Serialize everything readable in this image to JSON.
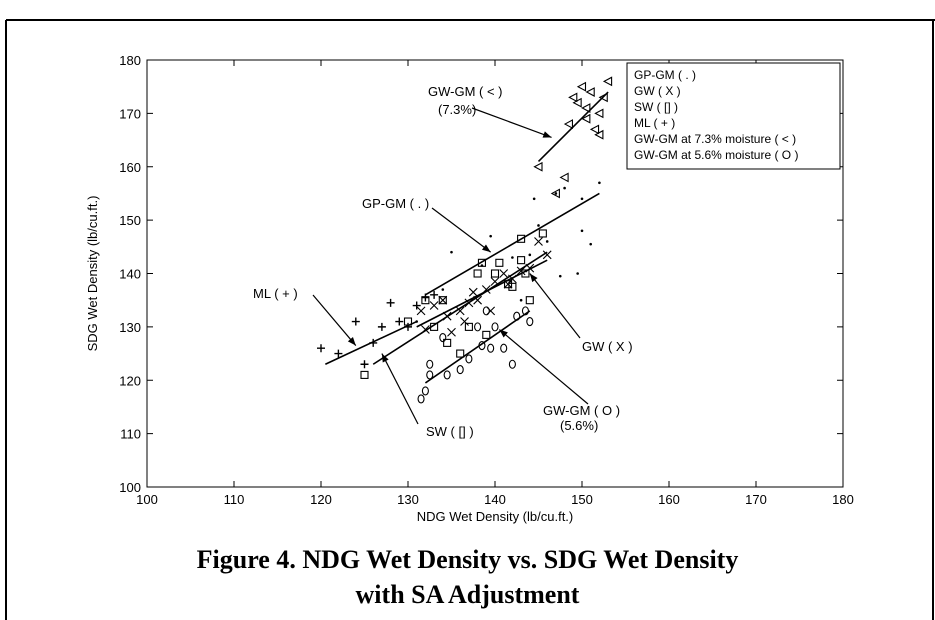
{
  "figure": {
    "caption_line1": "Figure 4. NDG Wet Density vs. SDG Wet Density",
    "caption_line2": "with SA Adjustment"
  },
  "chart_data": {
    "type": "scatter",
    "xlabel": "NDG Wet Density (lb/cu.ft.)",
    "ylabel": "SDG Wet Density (lb/cu.ft.)",
    "xlim": [
      100,
      180
    ],
    "ylim": [
      100,
      180
    ],
    "xticks": [
      100,
      110,
      120,
      130,
      140,
      150,
      160,
      170,
      180
    ],
    "yticks": [
      100,
      110,
      120,
      130,
      140,
      150,
      160,
      170,
      180
    ],
    "grid": false,
    "legend_position": "top-right",
    "legend": [
      "GP-GM  ( . )",
      "GW ( X )",
      "SW ( [] )",
      "ML  ( + )",
      "GW-GM at 7.3% moisture ( < )",
      "GW-GM at 5.6% moisture ( O )"
    ],
    "series": [
      {
        "name": "GP-GM  ( . )",
        "marker": "dot",
        "points": [
          [
            138.5,
            141.5
          ],
          [
            139.5,
            147
          ],
          [
            142,
            143
          ],
          [
            144,
            143.5
          ],
          [
            145,
            149
          ],
          [
            147,
            155
          ],
          [
            148,
            156
          ],
          [
            150,
            154
          ],
          [
            152,
            157
          ],
          [
            151,
            145.5
          ],
          [
            149.5,
            140
          ],
          [
            147.5,
            139.5
          ],
          [
            135,
            144
          ],
          [
            134,
            137
          ],
          [
            131,
            131
          ],
          [
            144.5,
            154
          ],
          [
            143,
            135
          ],
          [
            146,
            146
          ],
          [
            150,
            148
          ]
        ],
        "fit": [
          [
            132,
            136
          ],
          [
            152,
            155
          ]
        ]
      },
      {
        "name": "GW ( X )",
        "marker": "x",
        "points": [
          [
            131.5,
            133
          ],
          [
            132,
            129.5
          ],
          [
            133,
            134
          ],
          [
            134,
            135
          ],
          [
            135,
            129
          ],
          [
            136,
            133
          ],
          [
            137,
            134.5
          ],
          [
            137.5,
            136.5
          ],
          [
            138,
            135
          ],
          [
            139,
            137
          ],
          [
            140,
            138.5
          ],
          [
            141,
            140
          ],
          [
            141.5,
            138
          ],
          [
            142,
            139
          ],
          [
            143,
            140.5
          ],
          [
            144,
            141
          ],
          [
            145,
            146
          ],
          [
            134.5,
            132
          ],
          [
            136.5,
            131
          ],
          [
            139.5,
            133
          ],
          [
            146,
            143.5
          ]
        ],
        "fit": [
          [
            131,
            130
          ],
          [
            146,
            142.5
          ]
        ]
      },
      {
        "name": "SW ( [] )",
        "marker": "square",
        "points": [
          [
            125,
            121
          ],
          [
            130,
            131
          ],
          [
            132,
            135
          ],
          [
            134,
            135
          ],
          [
            133,
            130
          ],
          [
            136,
            125
          ],
          [
            137,
            130
          ],
          [
            138,
            140
          ],
          [
            138.5,
            142
          ],
          [
            140,
            140
          ],
          [
            140.5,
            142
          ],
          [
            141.5,
            138
          ],
          [
            142,
            137.5
          ],
          [
            143,
            142.5
          ],
          [
            143.5,
            140
          ],
          [
            144,
            135
          ],
          [
            145.5,
            147.5
          ],
          [
            143,
            146.5
          ],
          [
            134.5,
            127
          ],
          [
            139,
            128.5
          ]
        ],
        "fit": [
          [
            126,
            123
          ],
          [
            146,
            144
          ]
        ]
      },
      {
        "name": "ML  ( + )",
        "marker": "plus",
        "points": [
          [
            120,
            126
          ],
          [
            122,
            125
          ],
          [
            124,
            131
          ],
          [
            125,
            123
          ],
          [
            126,
            127
          ],
          [
            127,
            130
          ],
          [
            128,
            134.5
          ],
          [
            129,
            131
          ],
          [
            130,
            130
          ],
          [
            132,
            135.5
          ],
          [
            133,
            136
          ],
          [
            131,
            134
          ]
        ],
        "fit": [
          [
            120.5,
            123
          ],
          [
            131,
            131
          ]
        ]
      },
      {
        "name": "GW-GM at 7.3% moisture ( < )",
        "marker": "lt",
        "points": [
          [
            145,
            160
          ],
          [
            147,
            155
          ],
          [
            148,
            158
          ],
          [
            148.5,
            168
          ],
          [
            149,
            173
          ],
          [
            149.5,
            172
          ],
          [
            150,
            175
          ],
          [
            150.5,
            171
          ],
          [
            151,
            174
          ],
          [
            151.5,
            167
          ],
          [
            152,
            170
          ],
          [
            152.5,
            173
          ],
          [
            153,
            176
          ],
          [
            152,
            166
          ],
          [
            150.5,
            169
          ]
        ],
        "fit": [
          [
            145,
            161
          ],
          [
            153,
            174
          ]
        ]
      },
      {
        "name": "GW-GM at 5.6% moisture ( O )",
        "marker": "circle",
        "points": [
          [
            131.5,
            116.5
          ],
          [
            132,
            118
          ],
          [
            132.5,
            123
          ],
          [
            134,
            128
          ],
          [
            134.5,
            121
          ],
          [
            136,
            122
          ],
          [
            137,
            124
          ],
          [
            138,
            130
          ],
          [
            139,
            133
          ],
          [
            139.5,
            126
          ],
          [
            140,
            130
          ],
          [
            141,
            126
          ],
          [
            142,
            123
          ],
          [
            142.5,
            132
          ],
          [
            143.5,
            133
          ],
          [
            144,
            131
          ],
          [
            132.5,
            121
          ],
          [
            138.5,
            126.5
          ]
        ],
        "fit": [
          [
            132,
            119.5
          ],
          [
            144,
            133
          ]
        ]
      }
    ],
    "annotations": [
      {
        "label": "GW-GM ( < )",
        "sublabel": "(7.3%)",
        "arrow_to": [
          146.5,
          165.5
        ]
      },
      {
        "label": "GP-GM ( . )",
        "sublabel": "",
        "arrow_to": [
          139.5,
          144
        ]
      },
      {
        "label": "ML ( + )",
        "sublabel": "",
        "arrow_to": [
          124,
          126.5
        ]
      },
      {
        "label": "SW ( [] )",
        "sublabel": "",
        "arrow_to": [
          127,
          125
        ]
      },
      {
        "label": "GW ( X )",
        "sublabel": "",
        "arrow_to": [
          144,
          140
        ]
      },
      {
        "label": "GW-GM  ( O )",
        "sublabel": "(5.6%)",
        "arrow_to": [
          140.5,
          129.5
        ]
      }
    ]
  }
}
